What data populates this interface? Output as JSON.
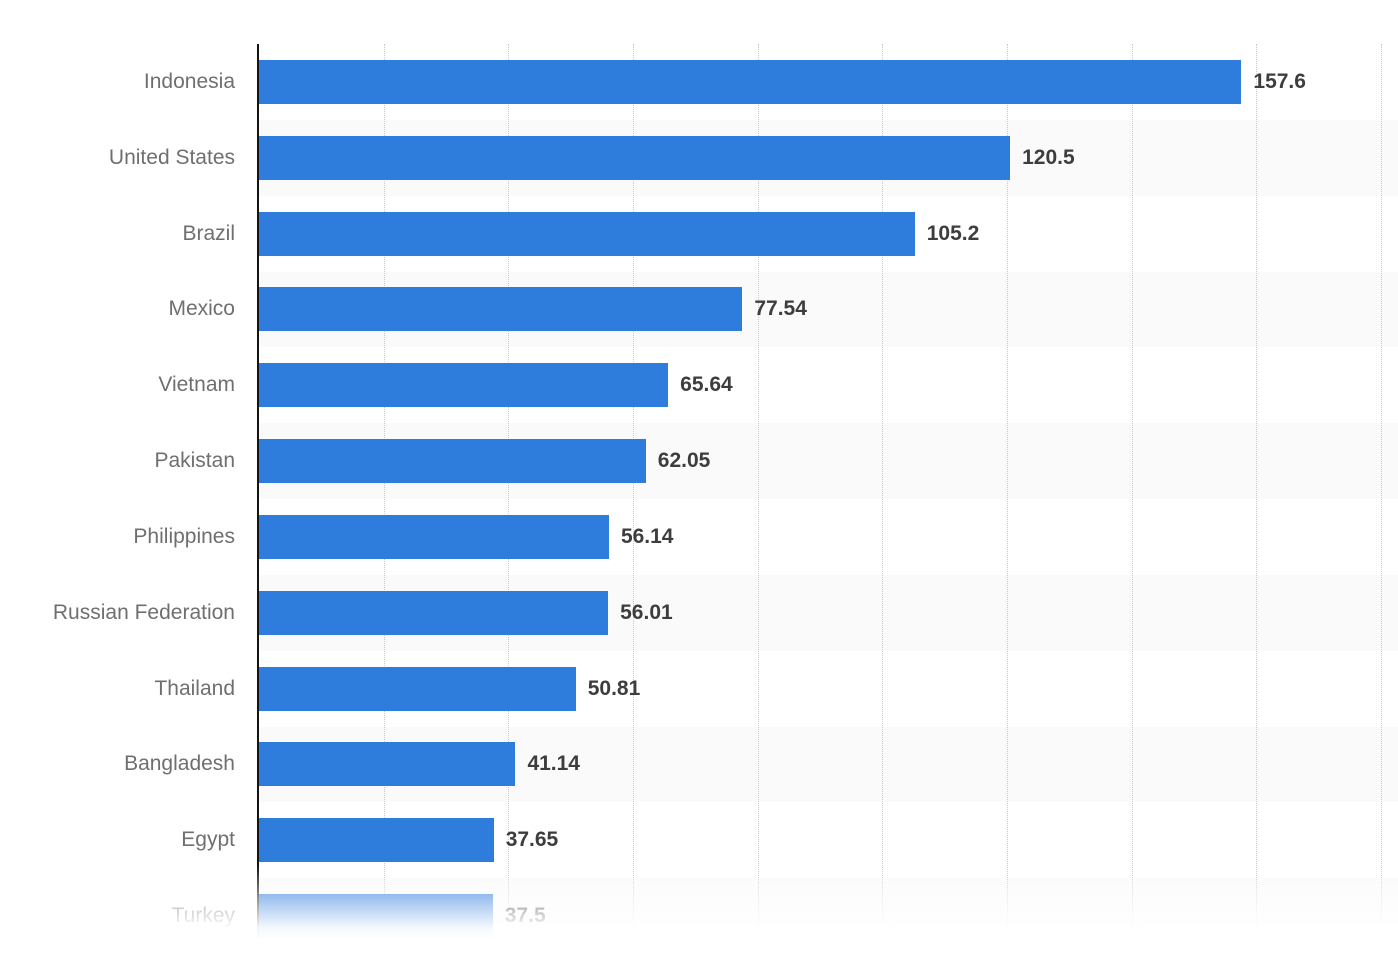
{
  "chart_data": {
    "type": "bar",
    "orientation": "horizontal",
    "title": "",
    "xlabel": "",
    "ylabel": "",
    "categories": [
      "Indonesia",
      "United States",
      "Brazil",
      "Mexico",
      "Vietnam",
      "Pakistan",
      "Philippines",
      "Russian Federation",
      "Thailand",
      "Bangladesh",
      "Egypt",
      "Turkey"
    ],
    "values": [
      157.6,
      120.5,
      105.2,
      77.54,
      65.64,
      62.05,
      56.14,
      56.01,
      50.81,
      41.14,
      37.65,
      37.5
    ],
    "value_labels": [
      "157.6",
      "120.5",
      "105.2",
      "77.54",
      "65.64",
      "62.05",
      "56.14",
      "56.01",
      "50.81",
      "41.14",
      "37.65",
      "37.5"
    ],
    "xlim": [
      0,
      182.7
    ],
    "gridline_interval": 20,
    "grid": "vertical-dotted",
    "legend": "none",
    "row_shading": "alternate",
    "last_row_faded": true,
    "colors": {
      "bar": "#2e7ddd",
      "row_band": "#fafafa",
      "gridline": "#c9c9c9",
      "axis": "#141414",
      "category_label": "#6f6f6f",
      "value_label": "#3d3d3d",
      "background": "#ffffff"
    }
  }
}
